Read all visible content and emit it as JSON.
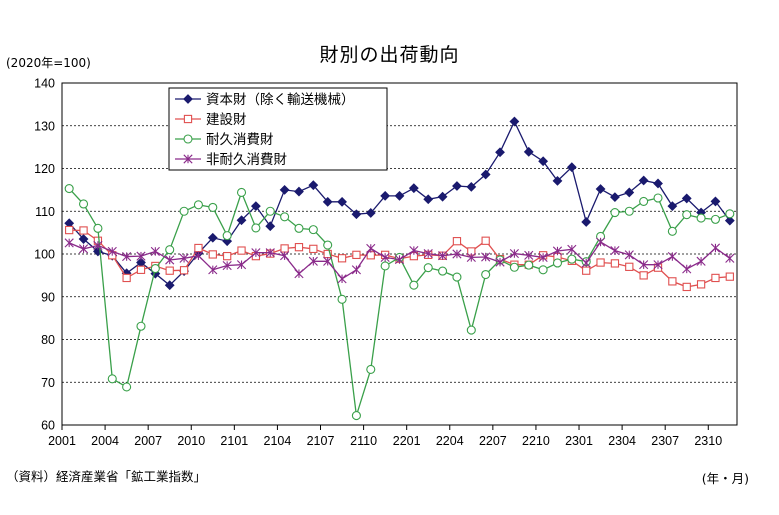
{
  "chart_data": {
    "type": "line",
    "title": "財別の出荷動向",
    "unit_note": "(2020年=100)",
    "source_note": "（資料）経済産業省「鉱工業指数」",
    "x_axis_note": "(年・月)",
    "ylim": [
      60,
      140
    ],
    "yticks": [
      "60",
      "70",
      "80",
      "90",
      "100",
      "110",
      "120",
      "130",
      "140"
    ],
    "xtick_labels": [
      "2001",
      "2004",
      "2007",
      "2010",
      "2101",
      "2104",
      "2107",
      "2110",
      "2201",
      "2204",
      "2207",
      "2210",
      "2301",
      "2304",
      "2307",
      "2310"
    ],
    "grid": "horizontal dashed",
    "legend_position": "top-left",
    "x": [
      "2001",
      "2002",
      "2003",
      "2004",
      "2005",
      "2006",
      "2007",
      "2008",
      "2009",
      "2010",
      "2011",
      "2012",
      "2101",
      "2102",
      "2103",
      "2104",
      "2105",
      "2106",
      "2107",
      "2108",
      "2109",
      "2110",
      "2111",
      "2112",
      "2201",
      "2202",
      "2203",
      "2204",
      "2205",
      "2206",
      "2207",
      "2208",
      "2209",
      "2210",
      "2211",
      "2212",
      "2301",
      "2302",
      "2303",
      "2304",
      "2305",
      "2306",
      "2307",
      "2308",
      "2309",
      "2310",
      "2311"
    ],
    "series": [
      {
        "name": "資本財（除く輸送機械）",
        "color": "#1a1a6e",
        "marker": "diamond",
        "values": [
          107.2,
          103.5,
          100.6,
          99.6,
          95.5,
          98.0,
          95.4,
          92.7,
          96.0,
          100.2,
          103.8,
          103.0,
          107.9,
          111.2,
          106.5,
          115.0,
          114.6,
          116.1,
          112.2,
          112.2,
          109.3,
          109.6,
          113.6,
          113.6,
          115.4,
          112.8,
          113.4,
          115.9,
          115.7,
          118.6,
          123.8,
          131.0,
          123.9,
          121.7,
          117.1,
          120.3,
          107.5,
          115.2,
          113.3,
          114.4,
          117.2,
          116.5,
          111.2,
          113.0,
          109.7,
          112.3,
          107.8
        ]
      },
      {
        "name": "建設財",
        "color": "#e05050",
        "marker": "square",
        "values": [
          105.6,
          105.5,
          103.1,
          99.7,
          94.4,
          96.3,
          97.2,
          96.1,
          96.2,
          101.4,
          99.9,
          99.5,
          100.8,
          99.5,
          100.1,
          101.3,
          101.6,
          101.2,
          100.0,
          99.0,
          99.8,
          99.7,
          99.8,
          98.9,
          99.5,
          99.8,
          99.6,
          103.0,
          100.6,
          103.1,
          98.8,
          97.5,
          97.5,
          99.7,
          99.3,
          98.4,
          96.1,
          98.0,
          97.8,
          97.0,
          95.0,
          96.8,
          93.6,
          92.3,
          92.9,
          94.4,
          94.7
        ]
      },
      {
        "name": "耐久消費財",
        "color": "#3aa04a",
        "marker": "circle",
        "values": [
          115.3,
          111.7,
          106.0,
          70.8,
          68.9,
          83.1,
          96.6,
          101.0,
          110.0,
          111.5,
          110.9,
          104.3,
          114.4,
          106.1,
          110.0,
          108.7,
          106.0,
          105.7,
          102.1,
          89.4,
          62.2,
          73.0,
          97.2,
          99.2,
          92.7,
          96.8,
          96.0,
          94.6,
          82.2,
          95.2,
          98.6,
          96.9,
          97.4,
          96.3,
          97.9,
          98.8,
          98.2,
          104.1,
          109.7,
          110.0,
          112.3,
          113.1,
          105.3,
          109.2,
          108.4,
          108.1,
          109.4
        ]
      },
      {
        "name": "非耐久消費財",
        "color": "#8a2a8a",
        "marker": "star",
        "values": [
          102.6,
          101.2,
          102.0,
          100.6,
          99.4,
          99.5,
          100.6,
          98.6,
          99.0,
          99.6,
          96.3,
          97.3,
          97.5,
          100.3,
          100.3,
          99.6,
          95.4,
          98.3,
          98.3,
          94.2,
          96.3,
          101.3,
          99.2,
          98.7,
          100.8,
          100.1,
          99.6,
          100.0,
          99.2,
          99.3,
          98.1,
          100.1,
          99.7,
          99.2,
          100.7,
          101.1,
          97.9,
          102.8,
          100.8,
          99.8,
          97.5,
          97.5,
          99.4,
          96.5,
          98.3,
          101.4,
          99.0
        ]
      }
    ]
  }
}
